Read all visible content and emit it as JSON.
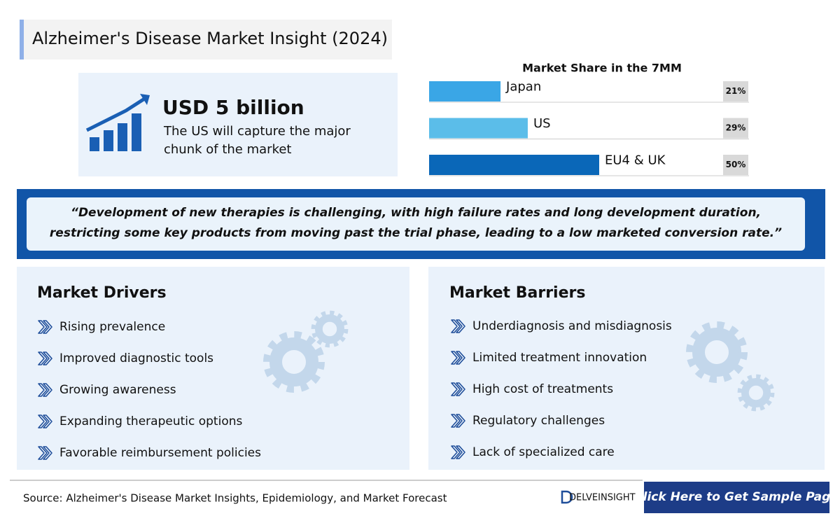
{
  "header": {
    "title": "Alzheimer's Disease Market Insight (2024)"
  },
  "headline": {
    "value": "USD 5 billion",
    "text_lines": [
      "The US will capture the major",
      "chunk of the market"
    ]
  },
  "chart_data": {
    "type": "bar",
    "orientation": "horizontal",
    "title": "Market Share in the 7MM",
    "categories": [
      "Japan",
      "US",
      "EU4 & UK"
    ],
    "values": [
      21,
      29,
      50
    ],
    "value_labels": [
      "21%",
      "29%",
      "50%"
    ],
    "colors": [
      "#3aa6e6",
      "#5bbde9",
      "#0a67b8"
    ]
  },
  "quote": {
    "lines": [
      "“Development of new therapies is challenging, with high failure rates and long development duration,",
      "restricting some key products from moving past the trial phase, leading to a low marketed conversion rate.”"
    ]
  },
  "drivers": {
    "title": "Market Drivers",
    "items": [
      "Rising prevalence",
      "Improved diagnostic tools",
      "Growing awareness",
      "Expanding therapeutic options",
      "Favorable reimbursement policies"
    ]
  },
  "barriers": {
    "title": "Market Barriers",
    "items": [
      "Underdiagnosis and misdiagnosis",
      "Limited treatment innovation",
      "High cost of treatments",
      "Regulatory challenges",
      "Lack of specialized care"
    ]
  },
  "footer": {
    "source": "Source: Alzheimer's Disease Market Insights, Epidemiology, and Market Forecast",
    "logo": "DELVEINSIGHT",
    "button": "Click Here to Get Sample Page"
  }
}
